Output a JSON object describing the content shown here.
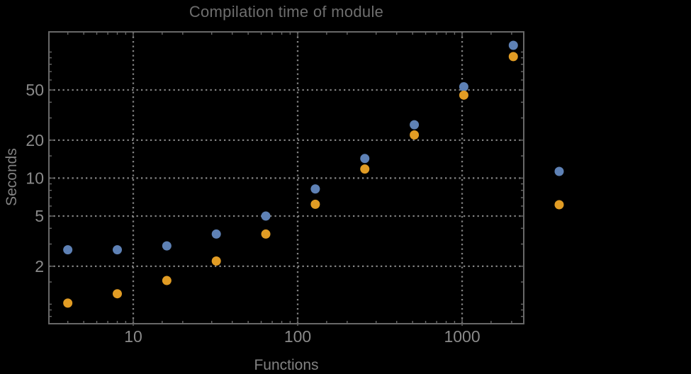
{
  "window": {
    "background": "#000000"
  },
  "colors": {
    "background": "#000000",
    "frame": "#686868",
    "grid": "#828282",
    "tick_labels": "#8a8a8a",
    "axis_labels": "#828282",
    "title": "#6e6e6e",
    "series_blue": "#5E81B5",
    "series_orange": "#E19C24"
  },
  "chart_data": {
    "type": "scatter",
    "title": "Compilation time of module",
    "xlabel": "Functions",
    "ylabel": "Seconds",
    "x_scale": "log",
    "y_scale": "log",
    "xlim": [
      3.07,
      2370
    ],
    "ylim": [
      0.7,
      144.5
    ],
    "grid": "dotted gridlines at labeled major ticks",
    "legend_position": "right of frame, markers only (labels not visible on black background)",
    "x": [
      4,
      8,
      16,
      32,
      64,
      128,
      256,
      512,
      1024,
      2048
    ],
    "series": [
      {
        "name": "series-1-blue",
        "marker": "disk",
        "color": "#5E81B5",
        "values": [
          2.7,
          2.7,
          2.9,
          3.6,
          5.0,
          8.2,
          14.3,
          26.5,
          53,
          113
        ]
      },
      {
        "name": "series-2-orange",
        "marker": "disk",
        "color": "#E19C24",
        "values": [
          1.02,
          1.21,
          1.54,
          2.2,
          3.6,
          6.2,
          11.8,
          22,
          45.5,
          92
        ]
      }
    ],
    "x_ticks": [
      {
        "value": 10,
        "label": "10"
      },
      {
        "value": 100,
        "label": "100"
      },
      {
        "value": 1000,
        "label": "1000"
      }
    ],
    "y_ticks": [
      {
        "value": 2,
        "label": "2"
      },
      {
        "value": 5,
        "label": "5"
      },
      {
        "value": 10,
        "label": "10"
      },
      {
        "value": 20,
        "label": "20"
      },
      {
        "value": 50,
        "label": "50"
      }
    ],
    "x_minor_ticks": [
      4,
      5,
      6,
      7,
      8,
      9,
      15,
      20,
      30,
      40,
      50,
      60,
      70,
      80,
      90,
      150,
      200,
      300,
      400,
      500,
      600,
      700,
      800,
      900,
      1500,
      2000
    ],
    "y_minor_ticks": [
      0.8,
      0.9,
      1,
      1.5,
      3,
      4,
      6,
      7,
      8,
      9,
      15,
      30,
      40,
      60,
      70,
      80,
      90,
      100
    ],
    "legend": {
      "labels_visible": false,
      "marker_count": 2
    }
  }
}
